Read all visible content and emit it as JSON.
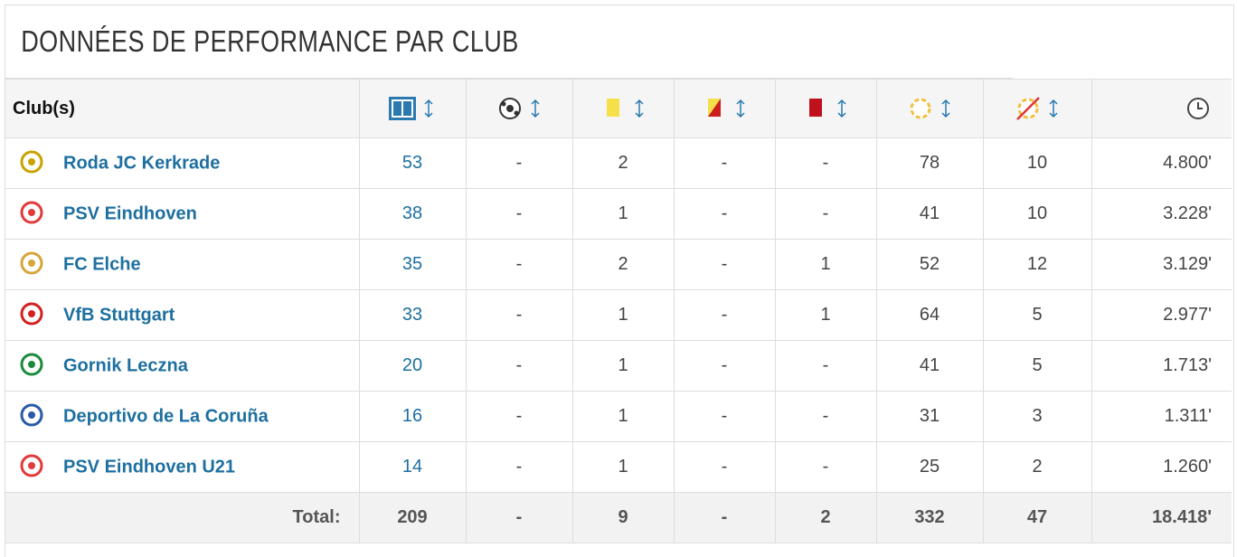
{
  "title": "DONNÉES DE PERFORMANCE PAR CLUB",
  "table": {
    "header": "Club(s)",
    "rows": [
      [
        "Roda JC Kerkrade",
        "53",
        "-",
        "2",
        "-",
        "-",
        "78",
        "10",
        "4.800'"
      ],
      [
        "PSV Eindhoven",
        "38",
        "-",
        "1",
        "-",
        "-",
        "41",
        "10",
        "3.228'"
      ],
      [
        "FC Elche",
        "35",
        "-",
        "2",
        "-",
        "1",
        "52",
        "12",
        "3.129'"
      ],
      [
        "VfB Stuttgart",
        "33",
        "-",
        "1",
        "-",
        "1",
        "64",
        "5",
        "2.977'"
      ],
      [
        "Gornik Leczna",
        "20",
        "-",
        "1",
        "-",
        "-",
        "41",
        "5",
        "1.713'"
      ],
      [
        "Deportivo de La Coruña",
        "16",
        "-",
        "1",
        "-",
        "-",
        "31",
        "3",
        "1.311'"
      ],
      [
        "PSV Eindhoven U21",
        "14",
        "-",
        "1",
        "-",
        "-",
        "25",
        "2",
        "1.260'"
      ]
    ],
    "total": [
      "Total:",
      "209",
      "-",
      "9",
      "-",
      "2",
      "332",
      "47",
      "18.418'"
    ]
  }
}
